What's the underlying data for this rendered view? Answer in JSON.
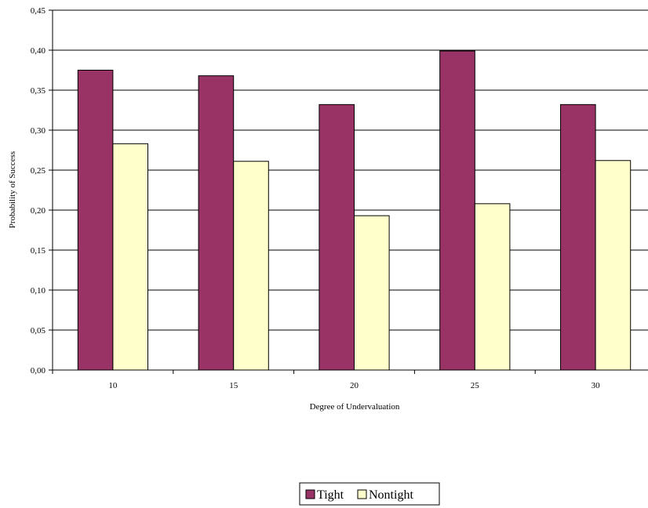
{
  "chart_data": {
    "type": "bar",
    "title": "",
    "xlabel": "Degree of Undervaluation",
    "ylabel": "Probability of Success",
    "categories": [
      "10",
      "15",
      "20",
      "25",
      "30"
    ],
    "series": [
      {
        "name": "Tight",
        "values": [
          0.375,
          0.368,
          0.332,
          0.399,
          0.332
        ],
        "color": "#993366"
      },
      {
        "name": "Nontight",
        "values": [
          0.283,
          0.261,
          0.193,
          0.208,
          0.262
        ],
        "color": "#FFFFCC"
      }
    ],
    "ylim": [
      0,
      0.45
    ],
    "yticks": [
      "0,00",
      "0,05",
      "0,10",
      "0,15",
      "0,20",
      "0,25",
      "0,30",
      "0,35",
      "0,40",
      "0,45"
    ],
    "grid": true,
    "legend_position": "bottom-center"
  }
}
